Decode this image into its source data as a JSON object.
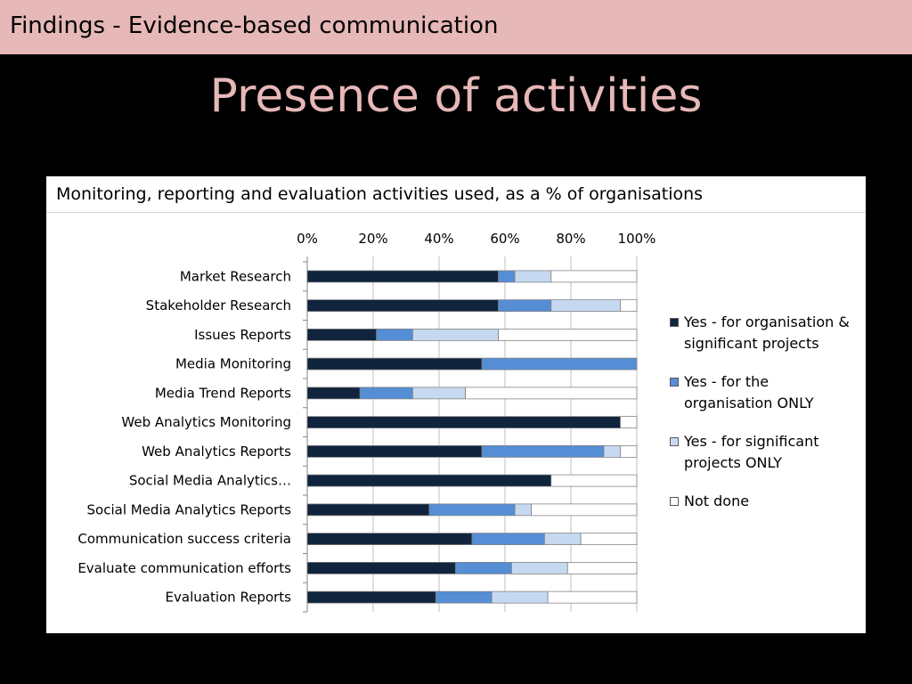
{
  "header": {
    "text": "Findings - Evidence-based communication"
  },
  "slide": {
    "title": "Presence of activities"
  },
  "chart_data": {
    "type": "bar",
    "orientation": "horizontal",
    "stacked": true,
    "title": "Monitoring, reporting and evaluation activities used, as a % of organisations",
    "xlabel": "",
    "ylabel": "",
    "xlim": [
      0,
      100
    ],
    "ticks": [
      "0%",
      "20%",
      "40%",
      "60%",
      "80%",
      "100%"
    ],
    "tick_values": [
      0,
      20,
      40,
      60,
      80,
      100
    ],
    "grid": true,
    "legend_position": "right",
    "categories": [
      "Market Research",
      "Stakeholder Research",
      "Issues Reports",
      "Media Monitoring",
      "Media Trend Reports",
      "Web Analytics Monitoring",
      "Web Analytics Reports",
      "Social Media Analytics…",
      "Social Media Analytics Reports",
      "Communication success criteria",
      "Evaluate communication efforts",
      "Evaluation Reports"
    ],
    "series": [
      {
        "name": "Yes - for organisation & significant projects",
        "color": "#10243e",
        "values": [
          58,
          58,
          21,
          53,
          16,
          95,
          53,
          74,
          37,
          50,
          45,
          39
        ]
      },
      {
        "name": "Yes - for the organisation ONLY",
        "color": "#558ed5",
        "values": [
          5,
          16,
          11,
          47,
          16,
          0,
          37,
          0,
          26,
          22,
          17,
          17
        ]
      },
      {
        "name": "Yes - for significant projects ONLY",
        "color": "#c6d9f1",
        "values": [
          11,
          21,
          26,
          0,
          16,
          0,
          5,
          0,
          5,
          11,
          17,
          17
        ]
      },
      {
        "name": "Not done",
        "color": "#ffffff",
        "values": [
          26,
          5,
          42,
          0,
          52,
          5,
          5,
          26,
          32,
          17,
          21,
          27
        ]
      }
    ]
  }
}
